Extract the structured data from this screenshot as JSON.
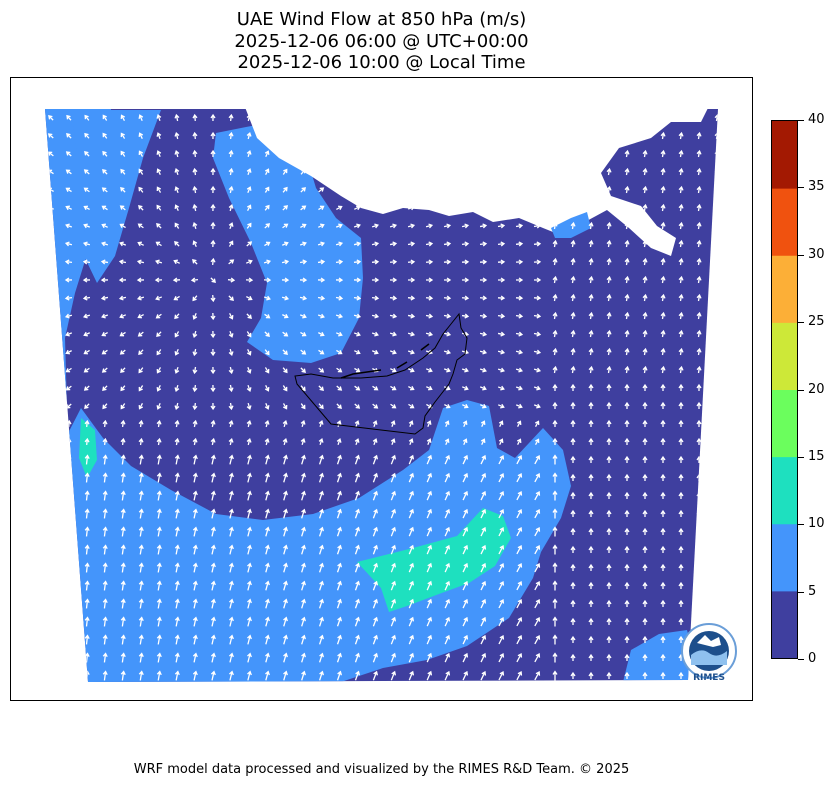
{
  "title": {
    "line1": "UAE Wind Flow at 850 hPa (m/s)",
    "line2": "2025-12-06 06:00 @ UTC+00:00",
    "line3": "2025-12-06 10:00 @ Local Time"
  },
  "colorbar": {
    "ticks": [
      "0",
      "5",
      "10",
      "15",
      "20",
      "25",
      "30",
      "35",
      "40"
    ],
    "colors": [
      "#3f3f9f",
      "#4495fb",
      "#1ee0bf",
      "#6bfe5d",
      "#cde838",
      "#fcaf37",
      "#f0520f",
      "#a31902"
    ],
    "range": [
      0,
      40
    ]
  },
  "map": {
    "colors": {
      "calm": "#3f3f9f",
      "light": "#4495fb",
      "moderate": "#1ee0bf",
      "no_data": "#ffffff",
      "arrow": "#ffffff",
      "border": "#000000"
    },
    "arrow_icon": "wind-arrow-icon"
  },
  "logo": {
    "text": "RIMES",
    "icon": "rimes-logo-icon"
  },
  "footer": "WRF model data processed and visualized by the RIMES R&D Team. © 2025"
}
